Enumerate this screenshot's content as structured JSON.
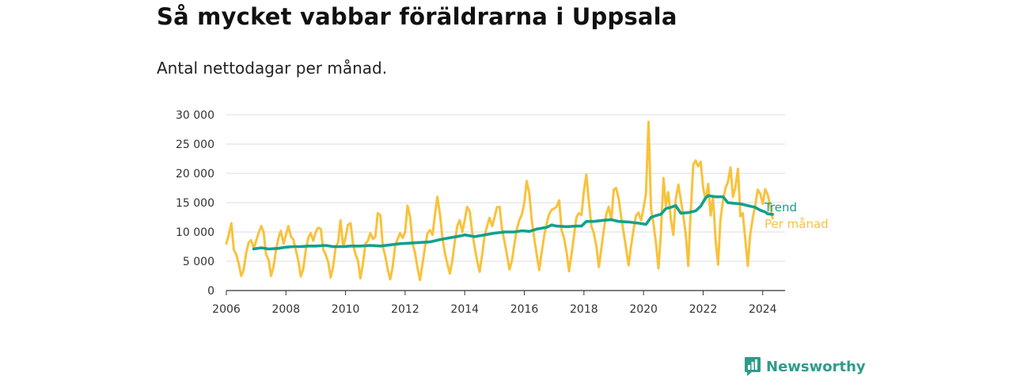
{
  "chart_data": {
    "type": "line",
    "title": "Så mycket vabbar föräldrarna i Uppsala",
    "subtitle": "Antal nettodagar per månad.",
    "xlabel": "",
    "ylabel": "",
    "xlim": [
      2006,
      2024.75
    ],
    "ylim": [
      0,
      30000
    ],
    "x_ticks": [
      2006,
      2008,
      2010,
      2012,
      2014,
      2016,
      2018,
      2020,
      2022,
      2024
    ],
    "x_tick_labels": [
      "2006",
      "2008",
      "2010",
      "2012",
      "2014",
      "2016",
      "2018",
      "2020",
      "2022",
      "2024"
    ],
    "y_ticks": [
      0,
      5000,
      10000,
      15000,
      20000,
      25000,
      30000
    ],
    "y_tick_labels": [
      "0",
      "5 000",
      "10 000",
      "15 000",
      "20 000",
      "25 000",
      "30 000"
    ],
    "grid": true,
    "series": [
      {
        "name": "Per månad",
        "label": "Per månad",
        "color": "#f9c23c",
        "points": [
          [
            2006.0,
            8000
          ],
          [
            2006.08,
            9500
          ],
          [
            2006.17,
            11500
          ],
          [
            2006.25,
            7000
          ],
          [
            2006.33,
            6200
          ],
          [
            2006.42,
            4500
          ],
          [
            2006.5,
            2500
          ],
          [
            2006.58,
            3500
          ],
          [
            2006.67,
            6500
          ],
          [
            2006.75,
            8200
          ],
          [
            2006.83,
            8600
          ],
          [
            2006.92,
            7200
          ],
          [
            2007.0,
            8500
          ],
          [
            2007.08,
            9800
          ],
          [
            2007.17,
            11000
          ],
          [
            2007.25,
            10000
          ],
          [
            2007.33,
            6200
          ],
          [
            2007.42,
            5200
          ],
          [
            2007.5,
            2500
          ],
          [
            2007.58,
            4000
          ],
          [
            2007.67,
            7000
          ],
          [
            2007.75,
            9000
          ],
          [
            2007.83,
            10200
          ],
          [
            2007.92,
            8000
          ],
          [
            2008.0,
            9500
          ],
          [
            2008.08,
            11000
          ],
          [
            2008.17,
            9200
          ],
          [
            2008.25,
            8700
          ],
          [
            2008.33,
            7000
          ],
          [
            2008.42,
            5000
          ],
          [
            2008.5,
            2400
          ],
          [
            2008.58,
            3600
          ],
          [
            2008.67,
            7000
          ],
          [
            2008.75,
            9000
          ],
          [
            2008.83,
            9800
          ],
          [
            2008.92,
            8500
          ],
          [
            2009.0,
            10000
          ],
          [
            2009.08,
            10700
          ],
          [
            2009.17,
            10500
          ],
          [
            2009.25,
            7000
          ],
          [
            2009.33,
            6200
          ],
          [
            2009.42,
            4800
          ],
          [
            2009.5,
            2200
          ],
          [
            2009.58,
            4000
          ],
          [
            2009.67,
            7500
          ],
          [
            2009.75,
            8200
          ],
          [
            2009.83,
            12000
          ],
          [
            2009.92,
            7500
          ],
          [
            2010.0,
            9000
          ],
          [
            2010.08,
            11200
          ],
          [
            2010.17,
            11500
          ],
          [
            2010.25,
            8000
          ],
          [
            2010.33,
            6300
          ],
          [
            2010.42,
            5000
          ],
          [
            2010.5,
            2100
          ],
          [
            2010.58,
            4500
          ],
          [
            2010.67,
            8000
          ],
          [
            2010.75,
            8500
          ],
          [
            2010.83,
            9800
          ],
          [
            2010.92,
            8800
          ],
          [
            2011.0,
            9200
          ],
          [
            2011.08,
            13200
          ],
          [
            2011.17,
            12800
          ],
          [
            2011.25,
            7500
          ],
          [
            2011.33,
            6000
          ],
          [
            2011.42,
            3500
          ],
          [
            2011.5,
            1900
          ],
          [
            2011.58,
            4000
          ],
          [
            2011.67,
            7800
          ],
          [
            2011.75,
            8800
          ],
          [
            2011.83,
            9800
          ],
          [
            2011.92,
            9000
          ],
          [
            2012.0,
            10000
          ],
          [
            2012.08,
            14500
          ],
          [
            2012.17,
            12500
          ],
          [
            2012.25,
            8000
          ],
          [
            2012.33,
            6500
          ],
          [
            2012.42,
            3800
          ],
          [
            2012.5,
            1800
          ],
          [
            2012.58,
            4500
          ],
          [
            2012.67,
            7500
          ],
          [
            2012.75,
            9800
          ],
          [
            2012.83,
            10300
          ],
          [
            2012.92,
            9500
          ],
          [
            2013.0,
            13000
          ],
          [
            2013.08,
            16000
          ],
          [
            2013.17,
            13000
          ],
          [
            2013.25,
            9000
          ],
          [
            2013.33,
            6500
          ],
          [
            2013.42,
            4500
          ],
          [
            2013.5,
            2900
          ],
          [
            2013.58,
            5000
          ],
          [
            2013.67,
            8500
          ],
          [
            2013.75,
            11000
          ],
          [
            2013.83,
            12000
          ],
          [
            2013.92,
            10000
          ],
          [
            2014.0,
            12000
          ],
          [
            2014.08,
            14300
          ],
          [
            2014.17,
            13500
          ],
          [
            2014.25,
            10000
          ],
          [
            2014.33,
            7500
          ],
          [
            2014.42,
            5000
          ],
          [
            2014.5,
            3200
          ],
          [
            2014.58,
            6000
          ],
          [
            2014.67,
            9500
          ],
          [
            2014.75,
            11000
          ],
          [
            2014.83,
            12400
          ],
          [
            2014.92,
            11000
          ],
          [
            2015.0,
            12500
          ],
          [
            2015.08,
            14200
          ],
          [
            2015.17,
            14300
          ],
          [
            2015.25,
            10500
          ],
          [
            2015.33,
            8500
          ],
          [
            2015.42,
            6000
          ],
          [
            2015.5,
            3600
          ],
          [
            2015.58,
            5000
          ],
          [
            2015.67,
            8000
          ],
          [
            2015.75,
            10500
          ],
          [
            2015.83,
            12000
          ],
          [
            2015.92,
            13000
          ],
          [
            2016.0,
            15000
          ],
          [
            2016.08,
            18700
          ],
          [
            2016.17,
            16500
          ],
          [
            2016.25,
            12000
          ],
          [
            2016.33,
            9000
          ],
          [
            2016.42,
            6000
          ],
          [
            2016.5,
            3500
          ],
          [
            2016.58,
            6500
          ],
          [
            2016.67,
            9500
          ],
          [
            2016.75,
            11500
          ],
          [
            2016.83,
            13000
          ],
          [
            2016.92,
            13800
          ],
          [
            2017.0,
            14000
          ],
          [
            2017.08,
            14300
          ],
          [
            2017.17,
            15400
          ],
          [
            2017.25,
            10300
          ],
          [
            2017.33,
            9000
          ],
          [
            2017.42,
            6500
          ],
          [
            2017.5,
            3300
          ],
          [
            2017.58,
            6000
          ],
          [
            2017.67,
            9500
          ],
          [
            2017.75,
            12500
          ],
          [
            2017.83,
            13200
          ],
          [
            2017.92,
            12900
          ],
          [
            2018.0,
            17000
          ],
          [
            2018.08,
            19800
          ],
          [
            2018.17,
            15000
          ],
          [
            2018.25,
            11000
          ],
          [
            2018.33,
            9800
          ],
          [
            2018.42,
            7500
          ],
          [
            2018.5,
            4000
          ],
          [
            2018.58,
            7000
          ],
          [
            2018.67,
            10500
          ],
          [
            2018.75,
            13000
          ],
          [
            2018.83,
            14300
          ],
          [
            2018.92,
            12000
          ],
          [
            2019.0,
            17200
          ],
          [
            2019.08,
            17500
          ],
          [
            2019.17,
            15600
          ],
          [
            2019.25,
            12500
          ],
          [
            2019.33,
            10000
          ],
          [
            2019.42,
            7000
          ],
          [
            2019.5,
            4300
          ],
          [
            2019.58,
            7500
          ],
          [
            2019.67,
            10500
          ],
          [
            2019.75,
            12800
          ],
          [
            2019.83,
            13300
          ],
          [
            2019.92,
            12000
          ],
          [
            2020.0,
            14000
          ],
          [
            2020.08,
            16500
          ],
          [
            2020.17,
            28800
          ],
          [
            2020.25,
            14000
          ],
          [
            2020.33,
            11500
          ],
          [
            2020.42,
            8000
          ],
          [
            2020.5,
            3800
          ],
          [
            2020.58,
            9500
          ],
          [
            2020.67,
            19200
          ],
          [
            2020.75,
            14500
          ],
          [
            2020.83,
            16800
          ],
          [
            2020.92,
            12000
          ],
          [
            2021.0,
            9500
          ],
          [
            2021.08,
            15500
          ],
          [
            2021.17,
            18100
          ],
          [
            2021.25,
            15500
          ],
          [
            2021.33,
            13000
          ],
          [
            2021.42,
            9500
          ],
          [
            2021.5,
            4200
          ],
          [
            2021.58,
            13000
          ],
          [
            2021.67,
            21500
          ],
          [
            2021.75,
            22200
          ],
          [
            2021.83,
            21200
          ],
          [
            2021.92,
            22000
          ],
          [
            2022.0,
            17500
          ],
          [
            2022.08,
            15500
          ],
          [
            2022.17,
            18200
          ],
          [
            2022.25,
            12800
          ],
          [
            2022.33,
            16000
          ],
          [
            2022.42,
            8500
          ],
          [
            2022.5,
            4400
          ],
          [
            2022.58,
            12000
          ],
          [
            2022.67,
            15500
          ],
          [
            2022.75,
            17500
          ],
          [
            2022.83,
            18500
          ],
          [
            2022.92,
            21000
          ],
          [
            2023.0,
            16000
          ],
          [
            2023.08,
            17500
          ],
          [
            2023.17,
            20800
          ],
          [
            2023.25,
            12700
          ],
          [
            2023.33,
            13200
          ],
          [
            2023.42,
            8500
          ],
          [
            2023.5,
            4200
          ],
          [
            2023.58,
            9500
          ],
          [
            2023.67,
            12500
          ],
          [
            2023.75,
            14500
          ],
          [
            2023.83,
            17200
          ],
          [
            2023.92,
            16500
          ],
          [
            2024.0,
            14800
          ],
          [
            2024.08,
            17300
          ],
          [
            2024.17,
            16300
          ],
          [
            2024.25,
            14400
          ],
          [
            2024.33,
            12300
          ]
        ]
      },
      {
        "name": "Trend",
        "label": "Trend",
        "color": "#13a08c",
        "points": [
          [
            2006.92,
            7100
          ],
          [
            2007.17,
            7300
          ],
          [
            2007.42,
            7100
          ],
          [
            2007.75,
            7200
          ],
          [
            2008.0,
            7400
          ],
          [
            2008.25,
            7500
          ],
          [
            2008.5,
            7500
          ],
          [
            2008.75,
            7600
          ],
          [
            2009.0,
            7600
          ],
          [
            2009.33,
            7700
          ],
          [
            2009.58,
            7500
          ],
          [
            2009.92,
            7500
          ],
          [
            2010.17,
            7600
          ],
          [
            2010.5,
            7600
          ],
          [
            2010.83,
            7700
          ],
          [
            2011.17,
            7600
          ],
          [
            2011.5,
            7800
          ],
          [
            2011.83,
            8000
          ],
          [
            2012.17,
            8100
          ],
          [
            2012.5,
            8200
          ],
          [
            2012.83,
            8300
          ],
          [
            2013.17,
            8700
          ],
          [
            2013.5,
            9000
          ],
          [
            2013.83,
            9300
          ],
          [
            2014.0,
            9500
          ],
          [
            2014.33,
            9200
          ],
          [
            2014.67,
            9500
          ],
          [
            2015.0,
            9800
          ],
          [
            2015.33,
            10000
          ],
          [
            2015.67,
            10000
          ],
          [
            2015.92,
            10200
          ],
          [
            2016.17,
            10100
          ],
          [
            2016.42,
            10500
          ],
          [
            2016.75,
            10800
          ],
          [
            2016.92,
            11200
          ],
          [
            2017.08,
            11000
          ],
          [
            2017.42,
            10900
          ],
          [
            2017.75,
            11000
          ],
          [
            2017.92,
            11000
          ],
          [
            2018.08,
            11800
          ],
          [
            2018.33,
            11800
          ],
          [
            2018.67,
            12000
          ],
          [
            2018.92,
            12100
          ],
          [
            2019.17,
            11800
          ],
          [
            2019.5,
            11700
          ],
          [
            2019.83,
            11500
          ],
          [
            2020.08,
            11300
          ],
          [
            2020.25,
            12500
          ],
          [
            2020.42,
            12800
          ],
          [
            2020.58,
            13000
          ],
          [
            2020.75,
            14000
          ],
          [
            2020.92,
            14200
          ],
          [
            2021.08,
            14500
          ],
          [
            2021.25,
            13200
          ],
          [
            2021.5,
            13300
          ],
          [
            2021.75,
            13600
          ],
          [
            2021.92,
            14400
          ],
          [
            2022.08,
            15800
          ],
          [
            2022.17,
            16200
          ],
          [
            2022.42,
            16000
          ],
          [
            2022.67,
            16000
          ],
          [
            2022.83,
            15000
          ],
          [
            2023.0,
            14900
          ],
          [
            2023.25,
            14800
          ],
          [
            2023.5,
            14500
          ],
          [
            2023.75,
            14200
          ],
          [
            2023.92,
            13700
          ],
          [
            2024.08,
            13400
          ],
          [
            2024.17,
            13100
          ],
          [
            2024.33,
            13000
          ]
        ]
      }
    ]
  },
  "brand": {
    "name": "Newsworthy",
    "color": "#2e9c8a"
  }
}
